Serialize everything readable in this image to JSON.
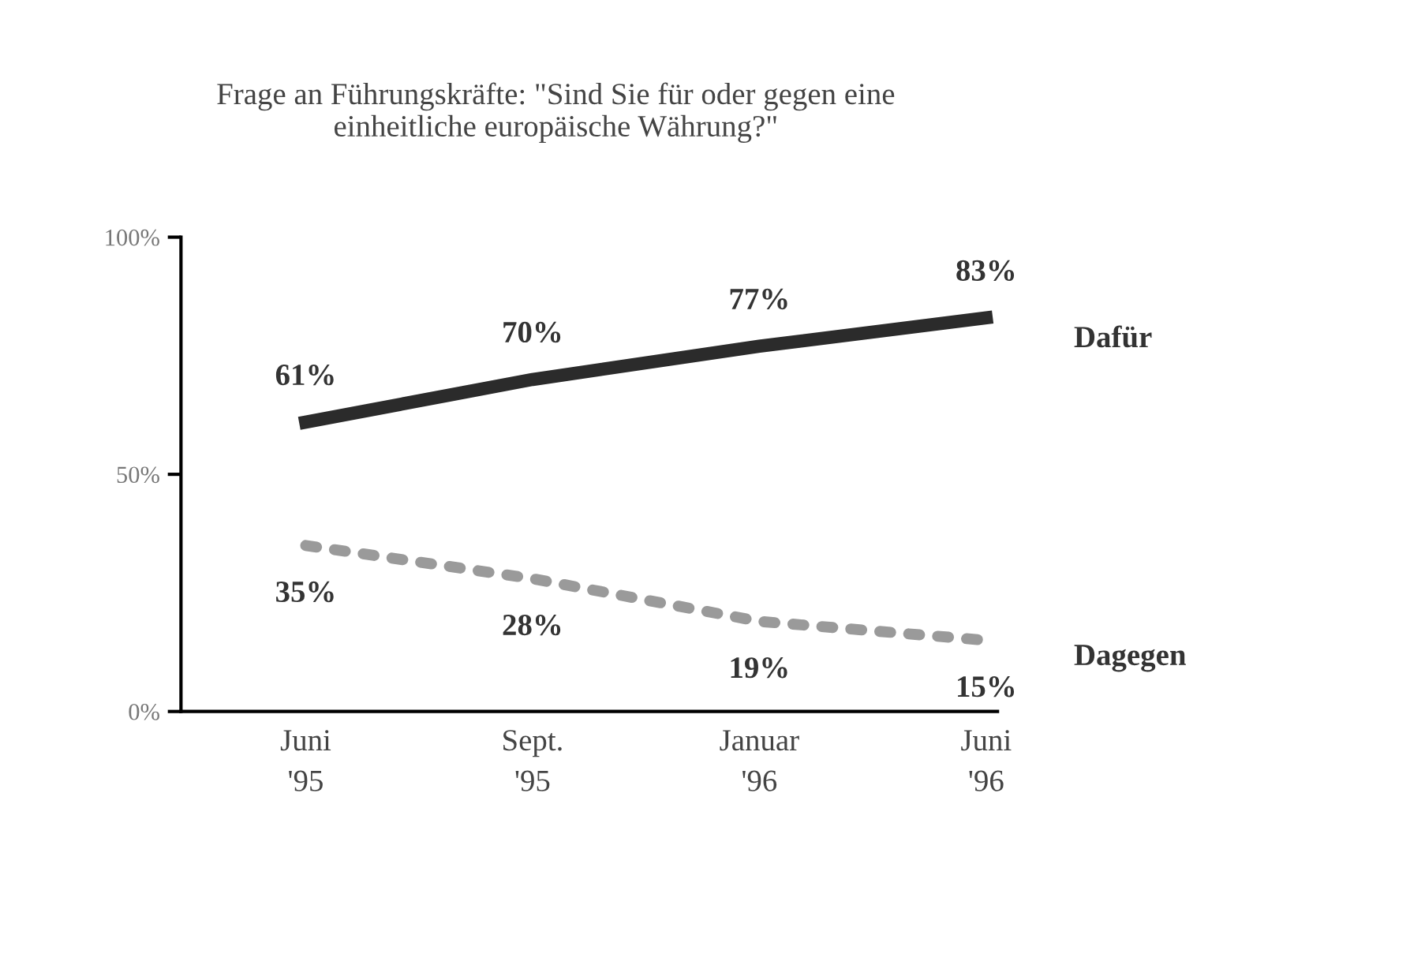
{
  "chart_data": {
    "type": "line",
    "title": "Frage an Führungskräfte: \"Sind Sie für oder gegen eine\neinheitliche europäische Währung?\"",
    "categories": [
      "Juni\n'95",
      "Sept.\n'95",
      "Januar\n'96",
      "Juni\n'96"
    ],
    "series": [
      {
        "name": "Dafür",
        "color": "#2b2b2b",
        "values": [
          61,
          70,
          77,
          83
        ],
        "value_labels": [
          "61%",
          "70%",
          "77%",
          "83%"
        ],
        "line_style": "solid"
      },
      {
        "name": "Dagegen",
        "color": "#9a9a9a",
        "values": [
          35,
          28,
          19,
          15
        ],
        "value_labels": [
          "35%",
          "28%",
          "19%",
          "15%"
        ],
        "line_style": "dotted"
      }
    ],
    "ylim": [
      0,
      100
    ],
    "yticks": [
      {
        "value": 0,
        "label": "0%"
      },
      {
        "value": 50,
        "label": "50%"
      },
      {
        "value": 100,
        "label": "100%"
      }
    ],
    "grid": false,
    "legend": false,
    "marker": "none"
  }
}
